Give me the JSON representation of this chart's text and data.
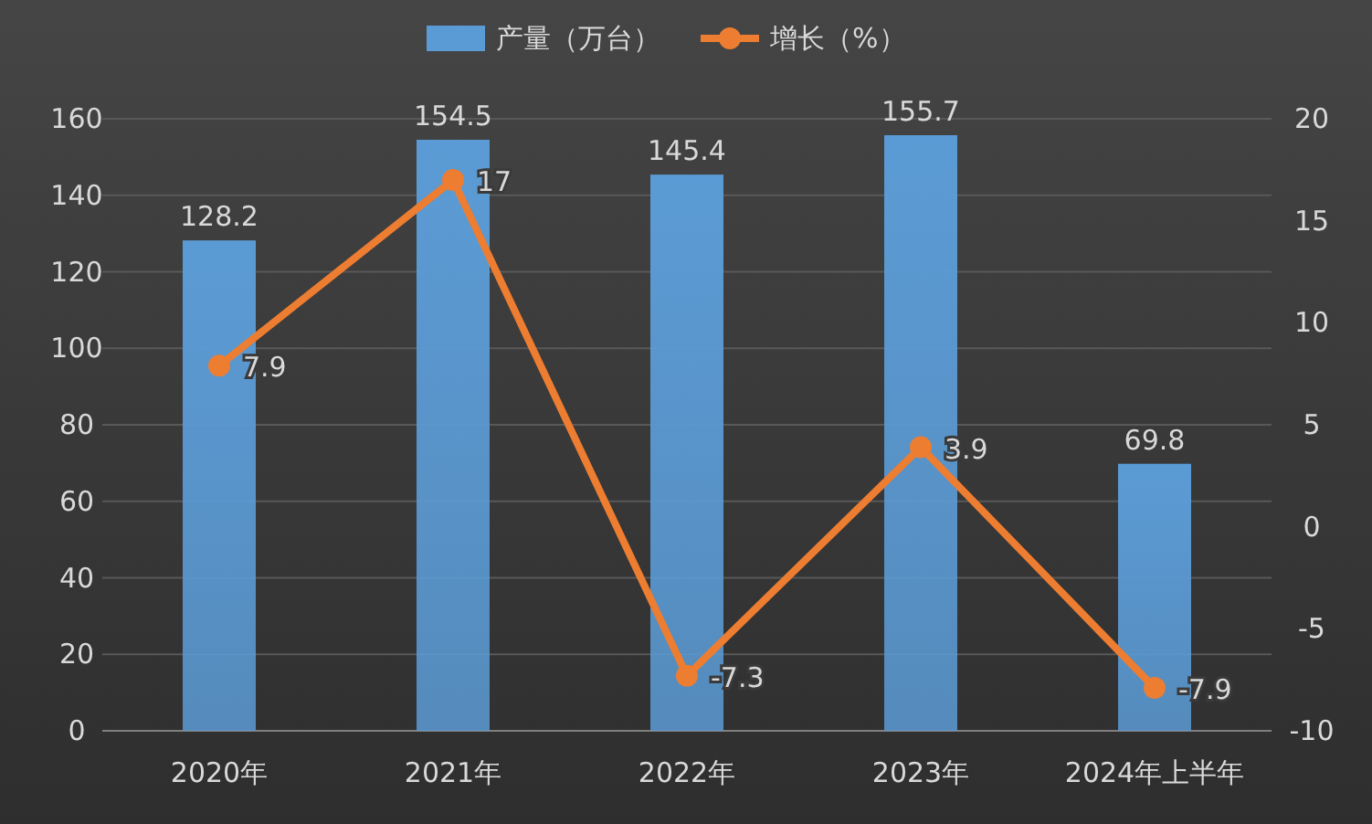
{
  "chart_data": {
    "type": "bar",
    "categories": [
      "2020年",
      "2021年",
      "2022年",
      "2023年",
      "2024年上半年"
    ],
    "series": [
      {
        "name": "产量（万台）",
        "color": "#5b9bd5",
        "values": [
          128.2,
          154.5,
          145.4,
          155.7,
          69.8
        ]
      },
      {
        "name": "增长（%）",
        "type": "line",
        "axis": "y2",
        "color": "#ed7d31",
        "values": [
          7.9,
          17,
          -7.3,
          3.9,
          -7.9
        ]
      }
    ],
    "ylim": [
      0,
      160
    ],
    "yticks": [
      0,
      20,
      40,
      60,
      80,
      100,
      120,
      140,
      160
    ],
    "y2lim": [
      -10,
      20
    ],
    "y2ticks": [
      -10,
      -5,
      0,
      5,
      10,
      15,
      20
    ],
    "grid": "y",
    "legend": "top",
    "marker": "circle",
    "data_labels": true
  }
}
